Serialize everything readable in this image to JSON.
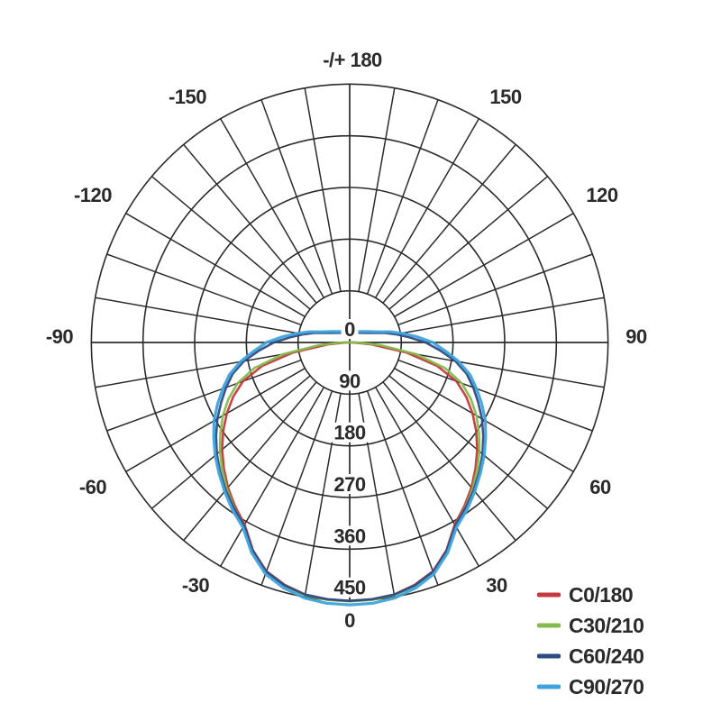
{
  "figure": {
    "background": "#ffffff",
    "text_color": "#2b2a2a",
    "grid_color": "#2b2b2b"
  },
  "chart_data": {
    "type": "line",
    "subtype": "polar-photometric-intensity",
    "title": "",
    "rmax": 450,
    "radial_ticks": [
      0,
      90,
      180,
      270,
      360,
      450
    ],
    "angle_step_deg": 10,
    "angle_labels": [
      "-/+ 180",
      "-150",
      "150",
      "-120",
      "120",
      "-90",
      "90",
      "-60",
      "60",
      "-30",
      "30",
      "0"
    ],
    "grid": true,
    "legend_position": "bottom-right",
    "series": [
      {
        "name": "C0/180",
        "color": "#c23a3c",
        "points": [
          [
            0,
            450
          ],
          [
            5,
            449
          ],
          [
            10,
            446
          ],
          [
            15,
            437
          ],
          [
            20,
            424
          ],
          [
            25,
            399
          ],
          [
            30,
            366
          ],
          [
            35,
            348
          ],
          [
            40,
            330
          ],
          [
            45,
            310
          ],
          [
            50,
            290
          ],
          [
            55,
            269
          ],
          [
            60,
            247
          ],
          [
            65,
            224
          ],
          [
            70,
            198
          ],
          [
            75,
            158
          ],
          [
            80,
            100
          ],
          [
            85,
            38
          ],
          [
            90,
            6
          ],
          [
            95,
            2
          ],
          [
            100,
            0
          ],
          [
            120,
            0
          ],
          [
            150,
            0
          ],
          [
            180,
            0
          ]
        ]
      },
      {
        "name": "C30/210",
        "color": "#85ba4e",
        "points": [
          [
            0,
            451
          ],
          [
            5,
            450
          ],
          [
            10,
            447
          ],
          [
            15,
            439
          ],
          [
            20,
            426
          ],
          [
            25,
            401
          ],
          [
            30,
            368
          ],
          [
            35,
            351
          ],
          [
            40,
            333
          ],
          [
            45,
            314
          ],
          [
            50,
            295
          ],
          [
            55,
            275
          ],
          [
            60,
            255
          ],
          [
            65,
            233
          ],
          [
            70,
            208
          ],
          [
            75,
            172
          ],
          [
            80,
            118
          ],
          [
            85,
            55
          ],
          [
            90,
            14
          ],
          [
            95,
            4
          ],
          [
            100,
            0
          ],
          [
            120,
            0
          ],
          [
            150,
            0
          ],
          [
            180,
            0
          ]
        ]
      },
      {
        "name": "C60/240",
        "color": "#2d4b83",
        "points": [
          [
            0,
            450
          ],
          [
            5,
            449
          ],
          [
            10,
            446
          ],
          [
            15,
            438
          ],
          [
            20,
            425
          ],
          [
            25,
            400
          ],
          [
            30,
            368
          ],
          [
            35,
            352
          ],
          [
            40,
            336
          ],
          [
            45,
            319
          ],
          [
            50,
            302
          ],
          [
            55,
            284
          ],
          [
            60,
            266
          ],
          [
            65,
            247
          ],
          [
            70,
            229
          ],
          [
            75,
            211
          ],
          [
            80,
            187
          ],
          [
            85,
            158
          ],
          [
            90,
            132
          ],
          [
            95,
            104
          ],
          [
            100,
            82
          ],
          [
            105,
            64
          ],
          [
            110,
            48
          ],
          [
            120,
            33
          ],
          [
            135,
            24
          ],
          [
            150,
            19
          ],
          [
            165,
            16
          ],
          [
            180,
            15
          ]
        ]
      },
      {
        "name": "C90/270",
        "color": "#3ea3dc",
        "points": [
          [
            0,
            457
          ],
          [
            5,
            456
          ],
          [
            10,
            452
          ],
          [
            15,
            443
          ],
          [
            20,
            429
          ],
          [
            25,
            404
          ],
          [
            30,
            372
          ],
          [
            35,
            356
          ],
          [
            40,
            339
          ],
          [
            45,
            322
          ],
          [
            50,
            306
          ],
          [
            55,
            289
          ],
          [
            60,
            273
          ],
          [
            65,
            254
          ],
          [
            70,
            235
          ],
          [
            75,
            217
          ],
          [
            80,
            193
          ],
          [
            85,
            167
          ],
          [
            90,
            145
          ],
          [
            95,
            117
          ],
          [
            100,
            92
          ],
          [
            105,
            72
          ],
          [
            110,
            54
          ],
          [
            120,
            38
          ],
          [
            135,
            27
          ],
          [
            150,
            22
          ],
          [
            165,
            18
          ],
          [
            180,
            17
          ]
        ]
      }
    ]
  }
}
